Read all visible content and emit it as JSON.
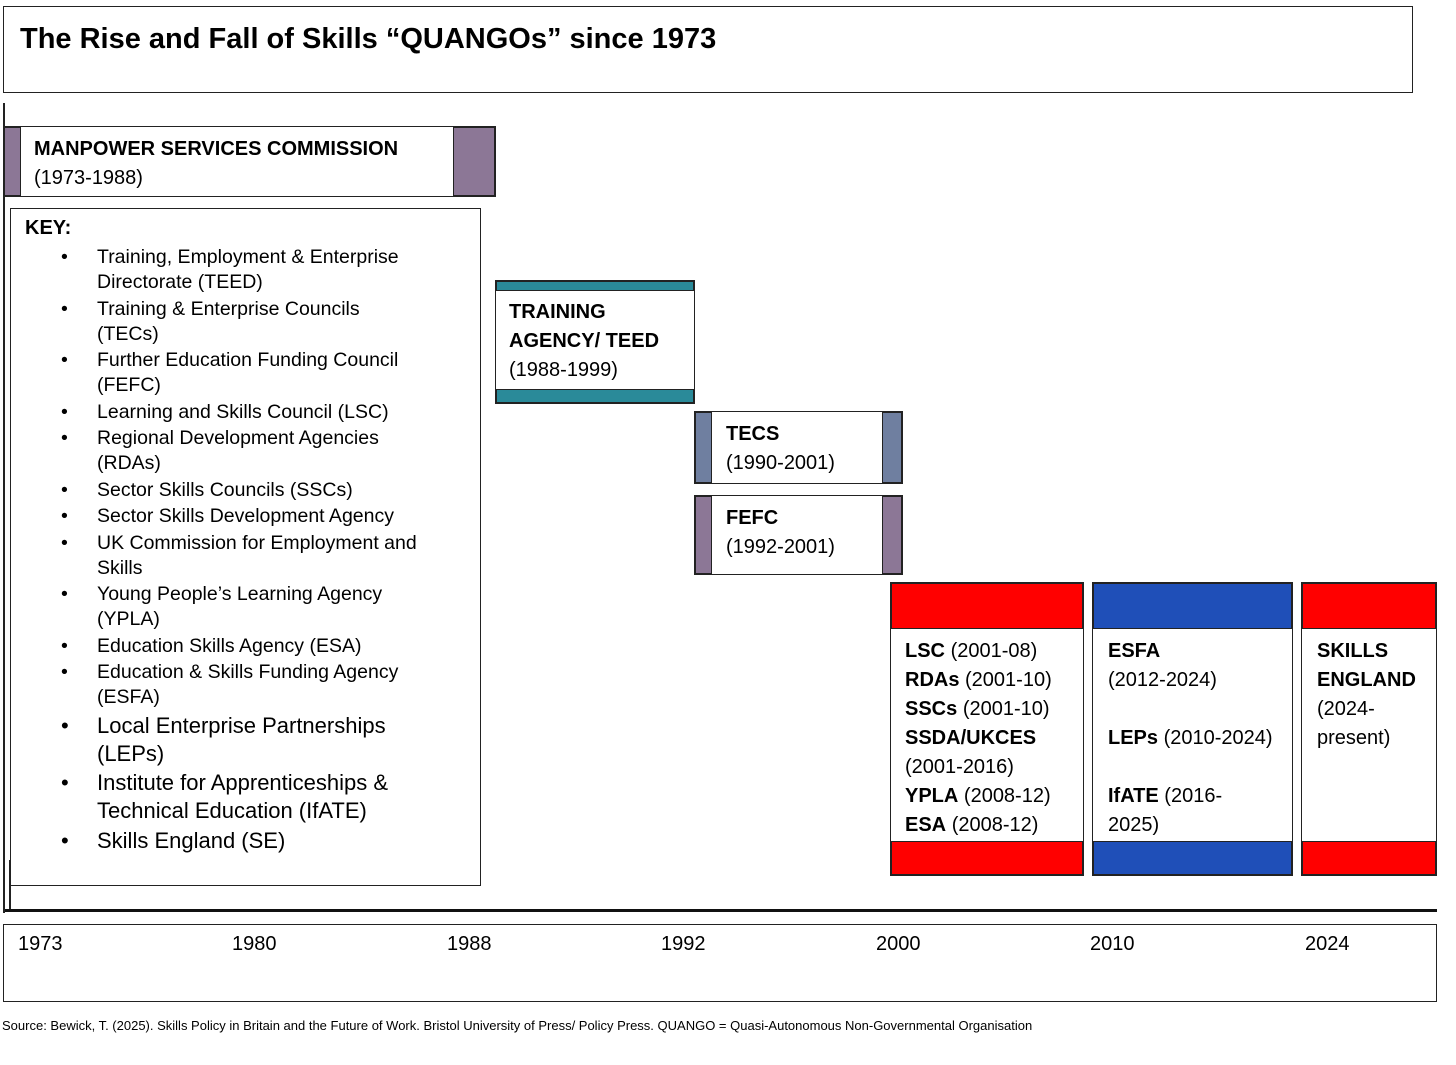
{
  "title": "The Rise and Fall of Skills “QUANGOs” since 1973",
  "colors": {
    "purple": "#8c7796",
    "teal": "#2a8a99",
    "slate_blue": "#6f7fa0",
    "red": "#ff0000",
    "blue": "#1f4fb8"
  },
  "bodies": {
    "msc": {
      "name": "MANPOWER SERVICES COMMISSION",
      "years": "(1973-1988)"
    },
    "training_agency": {
      "name_line1": "TRAINING",
      "name_line2": "AGENCY/ TEED",
      "years": "(1988-1999)"
    },
    "tecs": {
      "name": "TECS",
      "years": "(1990-2001)"
    },
    "fefc": {
      "name": "FEFC",
      "years": "(1992-2001)"
    },
    "lsc_group": {
      "lsc": {
        "name": "LSC",
        "years": "(2001-08)"
      },
      "rdas": {
        "name": "RDAs",
        "years": "(2001-10)"
      },
      "sscs": {
        "name": "SSCs",
        "years": "(2001-10)"
      },
      "ssda": {
        "name": "SSDA/UKCES",
        "years": "(2001-2016)"
      },
      "ypla": {
        "name": "YPLA",
        "years": "(2008-12)"
      },
      "esa": {
        "name": "ESA",
        "years": "(2008-12)"
      }
    },
    "esfa_group": {
      "esfa": {
        "name": "ESFA",
        "years": "(2012-2024)"
      },
      "leps": {
        "name": "LEPs",
        "years": "(2010-2024)"
      },
      "ifate": {
        "name": "IfATE",
        "years_line1": "(2016-",
        "years_line2": "2025)"
      }
    },
    "skills_england": {
      "name_line1": "SKILLS",
      "name_line2": "ENGLAND",
      "years_line1": "(2024-",
      "years_line2": "present)"
    }
  },
  "key": {
    "title": "KEY:",
    "items": [
      {
        "line1": "Training, Employment & Enterprise",
        "line2": "Directorate (TEED)"
      },
      {
        "line1": "Training & Enterprise Councils",
        "line2": "(TECs)"
      },
      {
        "line1": "Further Education Funding Council",
        "line2": "(FEFC)"
      },
      {
        "line1": "Learning and Skills Council (LSC)"
      },
      {
        "line1": "Regional Development Agencies",
        "line2": "(RDAs)"
      },
      {
        "line1": "Sector Skills Councils (SSCs)"
      },
      {
        "line1": "Sector Skills Development Agency"
      },
      {
        "line1": "UK Commission for Employment and",
        "line2": "Skills"
      },
      {
        "line1": "Young People’s Learning Agency",
        "line2": "(YPLA)"
      },
      {
        "line1": "Education Skills Agency (ESA)"
      },
      {
        "line1": "Education & Skills Funding Agency",
        "line2": "(ESFA)"
      },
      {
        "line1": "Local Enterprise Partnerships",
        "line2": "(LEPs)"
      },
      {
        "line1": "Institute for Apprenticeships &",
        "line2": "Technical Education (IfATE)"
      },
      {
        "line1": "Skills England (SE)"
      }
    ]
  },
  "timeline": {
    "years": [
      "1973",
      "1980",
      "1988",
      "1992",
      "2000",
      "2010",
      "2024"
    ]
  },
  "source": "Source: Bewick, T. (2025). Skills Policy in Britain and the Future of Work. Bristol University of Press/ Policy Press. QUANGO = Quasi-Autonomous Non-Governmental Organisation"
}
